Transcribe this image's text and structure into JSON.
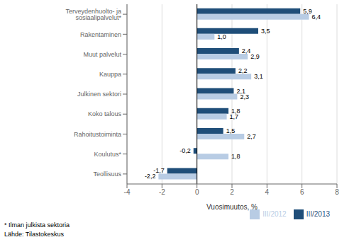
{
  "chart_data": {
    "type": "bar",
    "orientation": "horizontal",
    "categories": [
      "Terveydenhuolto- ja sosiaalipalvelut*",
      "Rakentaminen",
      "Muut palvelut",
      "Kauppa",
      "Julkinen sektori",
      "Koko talous",
      "Rahoitustoiminta",
      "Koulutus*",
      "Teollisuus"
    ],
    "series": [
      {
        "name": "III/2013",
        "color": "#1F4E79",
        "values": [
          5.9,
          3.5,
          2.4,
          2.2,
          2.1,
          1.8,
          1.5,
          -0.2,
          -1.7
        ],
        "value_labels": [
          "5,9",
          "3,5",
          "2,4",
          "2,2",
          "2,1",
          "1,8",
          "1,5",
          "-0,2",
          "-1,7"
        ]
      },
      {
        "name": "III/2012",
        "color": "#B8CCE4",
        "values": [
          6.4,
          1.0,
          2.9,
          3.1,
          2.3,
          1.7,
          2.7,
          1.8,
          -2.2
        ],
        "value_labels": [
          "6,4",
          "1,0",
          "2,9",
          "3,1",
          "2,3",
          "1,7",
          "2,7",
          "1,8",
          "-2,2"
        ]
      }
    ],
    "xlabel": "Vuosimuutos, %",
    "xlim": [
      -4,
      8
    ],
    "xticks": [
      -4,
      -2,
      0,
      2,
      4,
      6,
      8
    ],
    "grid": true,
    "legend": "lower right",
    "data_labels": true,
    "annotations": [
      "* Ilman julkista sektoria",
      "Lähde: Tilastokeskus"
    ]
  }
}
